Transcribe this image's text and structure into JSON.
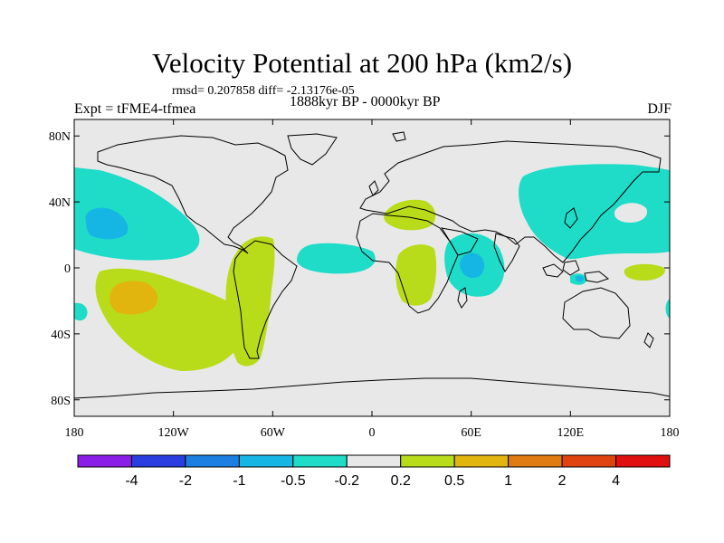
{
  "chart_data": {
    "type": "map",
    "title": "Velocity Potential at 200 hPa (km2/s)",
    "stats": "rmsd= 0.207858 diff= -2.13176e-05",
    "period": "1888kyr BP - 0000kyr BP",
    "experiment": "Expt = tFME4-tfmea",
    "season": "DJF",
    "lon_ticks": [
      "180",
      "120W",
      "60W",
      "0",
      "60E",
      "120E",
      "180"
    ],
    "lat_ticks": [
      "80N",
      "40N",
      "0",
      "40S",
      "80S"
    ],
    "colorbar": {
      "labels": [
        "-4",
        "-2",
        "-1",
        "-0.5",
        "-0.2",
        "0.2",
        "0.5",
        "1",
        "2",
        "4"
      ],
      "colors": [
        "#8a1ee6",
        "#2a3ee0",
        "#1a7fe0",
        "#16b6e4",
        "#1edcc8",
        "#e8e8e8",
        "#b8dc1a",
        "#e2b40e",
        "#e07a12",
        "#e0440e",
        "#e01010"
      ]
    },
    "anomaly_regions": [
      {
        "name": "north-pacific-negative",
        "sign": "negative",
        "level": "-0.2"
      },
      {
        "name": "hawaii-core-negative",
        "sign": "negative",
        "level": "-0.5"
      },
      {
        "name": "south-pacific-positive",
        "sign": "positive",
        "level": "0.2"
      },
      {
        "name": "south-pacific-core-positive",
        "sign": "positive",
        "level": "0.5"
      },
      {
        "name": "south-america-positive",
        "sign": "positive",
        "level": "0.2"
      },
      {
        "name": "tropical-atlantic-negative",
        "sign": "negative",
        "level": "-0.2"
      },
      {
        "name": "mediterranean-positive",
        "sign": "positive",
        "level": "0.2"
      },
      {
        "name": "central-africa-positive",
        "sign": "positive",
        "level": "0.2"
      },
      {
        "name": "indian-ocean-negative",
        "sign": "negative",
        "level": "-0.2"
      },
      {
        "name": "indian-ocean-core-negative",
        "sign": "negative",
        "level": "-0.5"
      },
      {
        "name": "east-asia-negative",
        "sign": "negative",
        "level": "-0.2"
      },
      {
        "name": "west-pacific-positive",
        "sign": "positive",
        "level": "0.2"
      },
      {
        "name": "indonesia-core-negative",
        "sign": "negative",
        "level": "-0.5"
      }
    ]
  }
}
